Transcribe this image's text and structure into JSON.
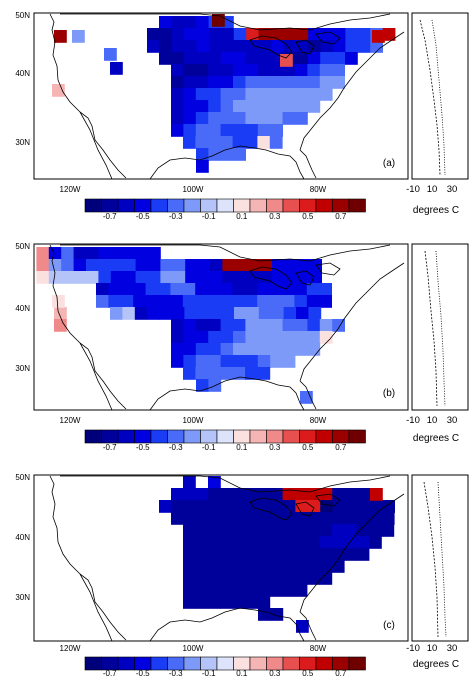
{
  "colorbar": {
    "labels": [
      "-0.7",
      "-0.5",
      "-0.3",
      "-0.1",
      "0.1",
      "0.3",
      "0.5",
      "0.7"
    ],
    "colors": [
      "#00007a",
      "#00009a",
      "#0000c0",
      "#0000e0",
      "#1a3cf5",
      "#4a6af8",
      "#7e9af8",
      "#b5c4f8",
      "#dde3fa",
      "#fbe0e0",
      "#f6b5b5",
      "#f08a8a",
      "#e85050",
      "#dc1c1c",
      "#c00000",
      "#9a0000",
      "#6e0000"
    ]
  },
  "map_axes": {
    "lat_ticks": [
      "50N",
      "40N",
      "30N"
    ],
    "lon_ticks": [
      "120W",
      "100W",
      "80W"
    ]
  },
  "side_axes": {
    "tick_labels": [
      "-10",
      "10",
      "30"
    ],
    "units": "degrees C"
  },
  "panels": [
    {
      "letter": "(a)",
      "cells": [
        [
          5,
          1,
          18
        ],
        [
          6,
          1,
          3
        ],
        [
          9,
          3,
          -3
        ],
        [
          10,
          3,
          -3
        ],
        [
          11,
          3,
          -5
        ],
        [
          12,
          3,
          -5
        ],
        [
          13,
          3,
          -6
        ],
        [
          14,
          3,
          -6
        ],
        [
          15,
          3,
          -5
        ],
        [
          16,
          3,
          -4
        ],
        [
          17,
          3,
          -4
        ],
        [
          18,
          3,
          -5
        ],
        [
          19,
          3,
          -6
        ],
        [
          20,
          3,
          -6
        ],
        [
          6,
          3,
          -8
        ],
        [
          7,
          3,
          -6
        ],
        [
          8,
          3,
          -3
        ],
        [
          9,
          2,
          -3
        ],
        [
          10,
          2,
          -3
        ],
        [
          11,
          2,
          -4
        ],
        [
          12,
          2,
          -4
        ],
        [
          13,
          2,
          -4
        ],
        [
          14,
          2,
          -3
        ],
        [
          15,
          2,
          -3
        ],
        [
          16,
          2,
          -2
        ],
        [
          17,
          2,
          -3
        ],
        [
          18,
          2,
          -4
        ],
        [
          19,
          2,
          -5
        ],
        [
          20,
          2,
          -6
        ],
        [
          21,
          2,
          -6
        ],
        [
          22,
          2,
          -5
        ],
        [
          9,
          1,
          -4
        ],
        [
          10,
          1,
          -6
        ],
        [
          11,
          1,
          -5
        ],
        [
          12,
          1,
          -4
        ],
        [
          13,
          1,
          -4
        ],
        [
          14,
          1,
          -4
        ],
        [
          15,
          1,
          -3
        ],
        [
          16,
          1,
          -3
        ],
        [
          17,
          1,
          -3
        ],
        [
          18,
          1,
          -3
        ],
        [
          19,
          1,
          -3
        ],
        [
          20,
          1,
          -4
        ],
        [
          21,
          1,
          -6
        ],
        [
          22,
          1,
          -6
        ],
        [
          23,
          1,
          -6
        ],
        [
          24,
          1,
          -6
        ],
        [
          25,
          1,
          -5
        ],
        [
          26,
          1,
          -4
        ],
        [
          9,
          0,
          -7
        ],
        [
          10,
          0,
          -7
        ],
        [
          11,
          0,
          -5
        ],
        [
          12,
          0,
          -4
        ],
        [
          13,
          0,
          -5
        ],
        [
          14,
          0,
          -6
        ],
        [
          15,
          0,
          -8
        ],
        [
          16,
          0,
          -8
        ],
        [
          17,
          0,
          -6
        ],
        [
          18,
          0,
          -6
        ],
        [
          19,
          0,
          -5
        ],
        [
          20,
          0,
          -6
        ],
        [
          21,
          0,
          -5
        ],
        [
          22,
          0,
          -5
        ],
        [
          23,
          0,
          -5
        ],
        [
          24,
          0,
          -6
        ],
        [
          25,
          0,
          -6
        ],
        [
          26,
          0,
          -6
        ],
        [
          27,
          0,
          -6
        ],
        [
          9,
          -1,
          -4
        ],
        [
          10,
          -1,
          -6
        ],
        [
          11,
          -1,
          -5
        ],
        [
          12,
          -1,
          -4
        ],
        [
          13,
          -1,
          -5
        ],
        [
          14,
          -1,
          -6
        ],
        [
          15,
          -1,
          -7
        ],
        [
          16,
          -1,
          -8
        ],
        [
          17,
          -1,
          -7
        ],
        [
          18,
          -1,
          -6
        ],
        [
          19,
          -1,
          -6
        ],
        [
          20,
          -1,
          -5
        ],
        [
          21,
          -1,
          -5
        ],
        [
          22,
          -1,
          -5
        ],
        [
          23,
          -1,
          -4
        ],
        [
          24,
          -1,
          -4
        ],
        [
          25,
          -1,
          -4
        ],
        [
          26,
          -1,
          -4
        ],
        [
          27,
          -1,
          -4
        ],
        [
          3,
          1,
          2
        ],
        [
          7,
          -1,
          -6
        ],
        [
          8,
          -1,
          -5
        ]
      ],
      "extra_cells": [
        [
          2,
          -4,
          4
        ],
        [
          -1,
          0,
          3
        ],
        [
          0,
          0,
          3
        ]
      ]
    },
    {
      "letter": "(b)",
      "cells": []
    },
    {
      "letter": "(c)",
      "cells": []
    }
  ]
}
